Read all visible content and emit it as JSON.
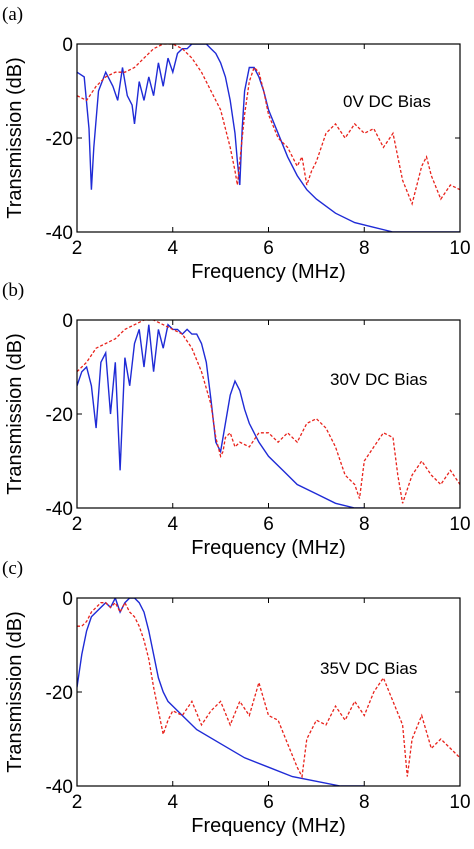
{
  "chart_data": [
    {
      "type": "line",
      "panel_label": "(a)",
      "annotation": "0V DC Bias",
      "xlabel": "Frequency (MHz)",
      "ylabel": "Transmission (dB)",
      "xlim": [
        2,
        10
      ],
      "ylim": [
        -40,
        0
      ],
      "xticks": [
        "2",
        "4",
        "6",
        "8",
        "10"
      ],
      "yticks": [
        "0",
        "-20",
        "-40"
      ],
      "series": [
        {
          "color": "#1f2bd6",
          "x": [
            2.0,
            2.15,
            2.25,
            2.3,
            2.35,
            2.45,
            2.6,
            2.75,
            2.85,
            2.95,
            3.05,
            3.15,
            3.2,
            3.3,
            3.4,
            3.5,
            3.6,
            3.7,
            3.8,
            3.9,
            4.0,
            4.1,
            4.2,
            4.3,
            4.4,
            4.5,
            4.6,
            4.7,
            4.8,
            4.9,
            5.0,
            5.1,
            5.2,
            5.3,
            5.35,
            5.4,
            5.45,
            5.5,
            5.6,
            5.7,
            5.8,
            5.9,
            6.0,
            6.2,
            6.4,
            6.6,
            6.8,
            7.0,
            7.4,
            7.8,
            8.2,
            8.6,
            9.0,
            9.5,
            10.0
          ],
          "y": [
            -6,
            -7,
            -18,
            -31,
            -22,
            -10,
            -6,
            -9,
            -12,
            -5,
            -11,
            -13,
            -17,
            -8,
            -12,
            -7,
            -11,
            -4,
            -9,
            -3,
            -6,
            -2,
            -1,
            -1,
            0,
            0,
            0,
            0,
            -1,
            -2,
            -4,
            -7,
            -12,
            -19,
            -25,
            -30,
            -18,
            -10,
            -5,
            -5,
            -7,
            -10,
            -14,
            -19,
            -24,
            -28,
            -31,
            -33,
            -36,
            -38,
            -39,
            -40,
            -40,
            -40,
            -40
          ]
        },
        {
          "color": "#e8221b",
          "x": [
            2.0,
            2.2,
            2.4,
            2.6,
            2.8,
            3.0,
            3.2,
            3.4,
            3.6,
            3.8,
            4.0,
            4.2,
            4.4,
            4.6,
            4.8,
            5.0,
            5.1,
            5.2,
            5.3,
            5.35,
            5.4,
            5.5,
            5.6,
            5.7,
            5.8,
            5.9,
            6.0,
            6.2,
            6.4,
            6.6,
            6.7,
            6.8,
            6.9,
            7.0,
            7.2,
            7.4,
            7.6,
            7.8,
            8.0,
            8.2,
            8.4,
            8.6,
            8.8,
            9.0,
            9.2,
            9.3,
            9.4,
            9.6,
            9.8,
            10.0
          ],
          "y": [
            -11,
            -12,
            -9,
            -7,
            -6,
            -6,
            -5,
            -3,
            -1,
            0,
            0,
            -1,
            -3,
            -6,
            -10,
            -14,
            -18,
            -22,
            -27,
            -30,
            -25,
            -15,
            -8,
            -5,
            -6,
            -10,
            -15,
            -20,
            -22,
            -26,
            -24,
            -30,
            -27,
            -25,
            -19,
            -17,
            -20,
            -17,
            -19,
            -18,
            -22,
            -19,
            -29,
            -34,
            -26,
            -24,
            -28,
            -33,
            -30,
            -31
          ]
        }
      ]
    },
    {
      "type": "line",
      "panel_label": "(b)",
      "annotation": "30V DC Bias",
      "xlabel": "Frequency (MHz)",
      "ylabel": "Transmission (dB)",
      "xlim": [
        2,
        10
      ],
      "ylim": [
        -40,
        0
      ],
      "xticks": [
        "2",
        "4",
        "6",
        "8",
        "10"
      ],
      "yticks": [
        "0",
        "-20",
        "-40"
      ],
      "series": [
        {
          "color": "#1f2bd6",
          "x": [
            2.0,
            2.1,
            2.2,
            2.3,
            2.4,
            2.5,
            2.6,
            2.7,
            2.8,
            2.9,
            3.0,
            3.1,
            3.2,
            3.3,
            3.4,
            3.5,
            3.6,
            3.7,
            3.8,
            3.9,
            4.0,
            4.1,
            4.2,
            4.3,
            4.4,
            4.5,
            4.6,
            4.7,
            4.8,
            4.9,
            5.0,
            5.1,
            5.2,
            5.3,
            5.4,
            5.5,
            5.6,
            5.8,
            6.0,
            6.3,
            6.6,
            7.0,
            7.4,
            7.8,
            8.0
          ],
          "y": [
            -14,
            -11,
            -10,
            -14,
            -23,
            -9,
            -7,
            -20,
            -9,
            -32,
            -8,
            -14,
            -5,
            -2,
            -10,
            -1,
            -11,
            -2,
            -6,
            -1,
            -2,
            -2,
            -3,
            -2,
            -3,
            -3,
            -5,
            -9,
            -17,
            -26,
            -28,
            -22,
            -16,
            -13,
            -15,
            -19,
            -22,
            -26,
            -29,
            -32,
            -35,
            -37,
            -39,
            -40,
            -40
          ]
        },
        {
          "color": "#e8221b",
          "x": [
            2.0,
            2.2,
            2.4,
            2.6,
            2.8,
            3.0,
            3.2,
            3.4,
            3.6,
            3.8,
            4.0,
            4.2,
            4.4,
            4.6,
            4.8,
            4.9,
            5.0,
            5.05,
            5.1,
            5.2,
            5.3,
            5.4,
            5.6,
            5.8,
            6.0,
            6.2,
            6.4,
            6.6,
            6.8,
            7.0,
            7.2,
            7.4,
            7.6,
            7.8,
            7.9,
            8.0,
            8.2,
            8.4,
            8.6,
            8.7,
            8.8,
            9.0,
            9.2,
            9.4,
            9.6,
            9.8,
            10.0
          ],
          "y": [
            -11,
            -9,
            -6,
            -5,
            -4,
            -2,
            -1,
            0,
            0,
            -1,
            -2,
            -3,
            -6,
            -11,
            -18,
            -25,
            -29,
            -28,
            -25,
            -24,
            -27,
            -26,
            -27,
            -24,
            -24,
            -26,
            -24,
            -26,
            -22,
            -21,
            -23,
            -27,
            -33,
            -35,
            -38,
            -30,
            -27,
            -24,
            -25,
            -33,
            -39,
            -33,
            -30,
            -33,
            -35,
            -32,
            -35
          ]
        }
      ]
    },
    {
      "type": "line",
      "panel_label": "(c)",
      "annotation": "35V DC Bias",
      "xlabel": "Frequency (MHz)",
      "ylabel": "Transmission (dB)",
      "xlim": [
        2,
        10
      ],
      "ylim": [
        -40,
        0
      ],
      "xticks": [
        "2",
        "4",
        "6",
        "8",
        "10"
      ],
      "yticks": [
        "0",
        "-20",
        "-40"
      ],
      "series": [
        {
          "color": "#1f2bd6",
          "x": [
            2.0,
            2.1,
            2.2,
            2.3,
            2.4,
            2.5,
            2.6,
            2.7,
            2.8,
            2.9,
            3.0,
            3.1,
            3.2,
            3.3,
            3.4,
            3.5,
            3.6,
            3.7,
            3.8,
            3.9,
            4.0,
            4.2,
            4.5,
            5.0,
            5.5,
            6.0,
            6.5,
            7.0,
            7.5,
            8.0
          ],
          "y": [
            -19,
            -12,
            -7,
            -4,
            -3,
            -2,
            -1,
            -2,
            0,
            -3,
            -1,
            0,
            0,
            -1,
            -3,
            -7,
            -12,
            -17,
            -20,
            -22,
            -23,
            -25,
            -28,
            -31,
            -34,
            -36,
            -38,
            -39,
            -40,
            -40
          ]
        },
        {
          "color": "#e8221b",
          "x": [
            2.0,
            2.1,
            2.2,
            2.3,
            2.4,
            2.5,
            2.6,
            2.7,
            2.8,
            2.9,
            3.0,
            3.1,
            3.2,
            3.3,
            3.4,
            3.5,
            3.6,
            3.7,
            3.8,
            3.9,
            4.0,
            4.2,
            4.4,
            4.6,
            4.8,
            5.0,
            5.2,
            5.4,
            5.6,
            5.8,
            6.0,
            6.2,
            6.4,
            6.6,
            6.7,
            6.8,
            7.0,
            7.2,
            7.4,
            7.6,
            7.8,
            8.0,
            8.2,
            8.4,
            8.6,
            8.8,
            8.9,
            9.0,
            9.2,
            9.4,
            9.6,
            9.8,
            10.0
          ],
          "y": [
            -6,
            -6,
            -5,
            -3,
            -2,
            -1,
            -1,
            -2,
            -1,
            -3,
            -1,
            -3,
            -4,
            -6,
            -9,
            -13,
            -19,
            -24,
            -29,
            -26,
            -24,
            -25,
            -22,
            -27,
            -24,
            -22,
            -27,
            -22,
            -25,
            -18,
            -25,
            -26,
            -31,
            -36,
            -38,
            -30,
            -26,
            -27,
            -23,
            -26,
            -22,
            -25,
            -20,
            -17,
            -22,
            -27,
            -38,
            -30,
            -25,
            -32,
            -30,
            -32,
            -34
          ]
        }
      ]
    }
  ]
}
